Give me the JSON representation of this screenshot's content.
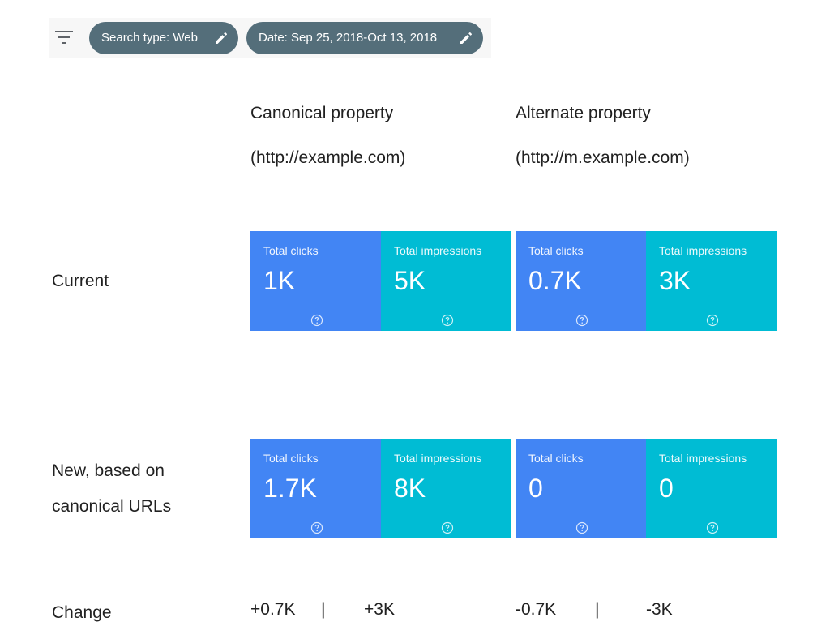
{
  "filters": {
    "search_type": "Search type: Web",
    "date": "Date: Sep 25, 2018-Oct 13, 2018"
  },
  "columns": {
    "canonical": {
      "title": "Canonical property",
      "url": "(http://example.com)"
    },
    "alternate": {
      "title": "Alternate property",
      "url": "(http://m.example.com)"
    }
  },
  "rows": {
    "current": {
      "label": "Current"
    },
    "new": {
      "line1": "New, based on",
      "line2": "canonical URLs"
    },
    "change": {
      "label": "Change"
    }
  },
  "metrics": {
    "clicks_label": "Total clicks",
    "impressions_label": "Total impressions",
    "current": {
      "canonical": {
        "clicks": "1K",
        "impressions": "5K"
      },
      "alternate": {
        "clicks": "0.7K",
        "impressions": "3K"
      }
    },
    "new": {
      "canonical": {
        "clicks": "1.7K",
        "impressions": "8K"
      },
      "alternate": {
        "clicks": "0",
        "impressions": "0"
      }
    }
  },
  "change": {
    "canonical": {
      "clicks": "+0.7K",
      "separator": "|",
      "impressions": "+3K"
    },
    "alternate": {
      "clicks": "-0.7K",
      "separator": "|",
      "impressions": "-3K"
    }
  },
  "icons": {
    "filter": "filter-icon",
    "edit": "pencil-icon",
    "help": "help-circle-icon"
  },
  "colors": {
    "chip_bg": "#546e7a",
    "clicks_card": "#4285f4",
    "impressions_card": "#00bcd4"
  }
}
